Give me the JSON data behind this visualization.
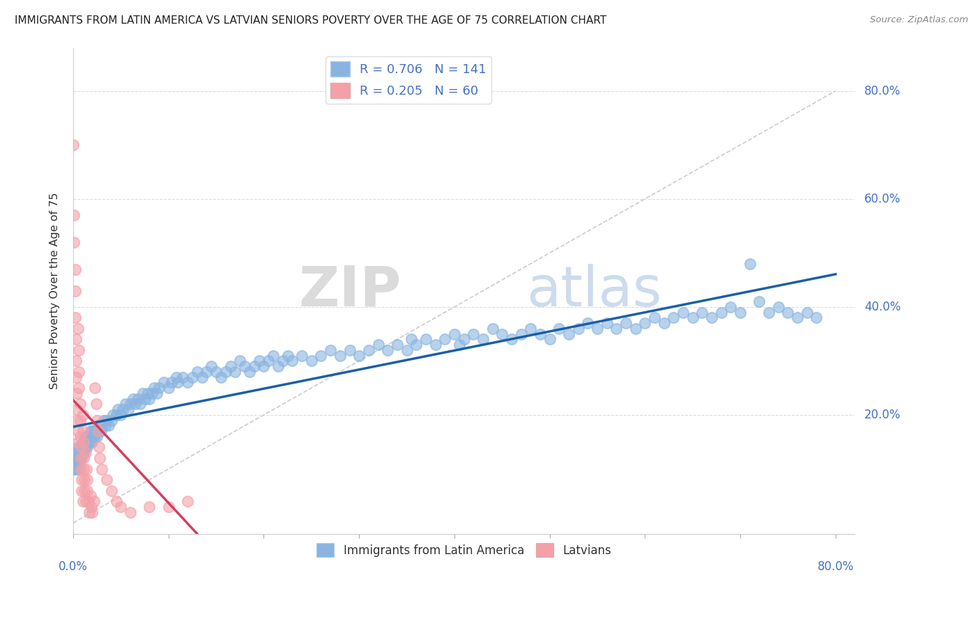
{
  "title": "IMMIGRANTS FROM LATIN AMERICA VS LATVIAN SENIORS POVERTY OVER THE AGE OF 75 CORRELATION CHART",
  "source": "Source: ZipAtlas.com",
  "ylabel": "Seniors Poverty Over the Age of 75",
  "x_lim": [
    0.0,
    0.82
  ],
  "y_lim": [
    -0.02,
    0.88
  ],
  "blue_color": "#8ab4e0",
  "pink_color": "#f4a0a8",
  "blue_line_color": "#1a5fa8",
  "pink_line_color": "#d04060",
  "diag_line_color": "#cccccc",
  "legend_label_blue": "Immigrants from Latin America",
  "legend_label_pink": "Latvians",
  "watermark_zip": "ZIP",
  "watermark_atlas": "atlas",
  "blue_scatter": [
    [
      0.001,
      0.1
    ],
    [
      0.002,
      0.11
    ],
    [
      0.002,
      0.12
    ],
    [
      0.003,
      0.1
    ],
    [
      0.003,
      0.13
    ],
    [
      0.004,
      0.11
    ],
    [
      0.004,
      0.12
    ],
    [
      0.005,
      0.1
    ],
    [
      0.005,
      0.13
    ],
    [
      0.005,
      0.14
    ],
    [
      0.006,
      0.12
    ],
    [
      0.006,
      0.11
    ],
    [
      0.007,
      0.13
    ],
    [
      0.007,
      0.12
    ],
    [
      0.008,
      0.14
    ],
    [
      0.008,
      0.13
    ],
    [
      0.009,
      0.12
    ],
    [
      0.009,
      0.14
    ],
    [
      0.01,
      0.13
    ],
    [
      0.01,
      0.15
    ],
    [
      0.011,
      0.14
    ],
    [
      0.011,
      0.13
    ],
    [
      0.012,
      0.15
    ],
    [
      0.012,
      0.14
    ],
    [
      0.013,
      0.16
    ],
    [
      0.013,
      0.14
    ],
    [
      0.014,
      0.15
    ],
    [
      0.015,
      0.14
    ],
    [
      0.015,
      0.16
    ],
    [
      0.016,
      0.15
    ],
    [
      0.017,
      0.16
    ],
    [
      0.018,
      0.15
    ],
    [
      0.018,
      0.17
    ],
    [
      0.019,
      0.16
    ],
    [
      0.02,
      0.15
    ],
    [
      0.02,
      0.17
    ],
    [
      0.021,
      0.16
    ],
    [
      0.022,
      0.17
    ],
    [
      0.023,
      0.16
    ],
    [
      0.024,
      0.17
    ],
    [
      0.025,
      0.16
    ],
    [
      0.026,
      0.18
    ],
    [
      0.027,
      0.17
    ],
    [
      0.028,
      0.18
    ],
    [
      0.029,
      0.17
    ],
    [
      0.03,
      0.18
    ],
    [
      0.032,
      0.19
    ],
    [
      0.034,
      0.18
    ],
    [
      0.035,
      0.19
    ],
    [
      0.037,
      0.18
    ],
    [
      0.04,
      0.19
    ],
    [
      0.042,
      0.2
    ],
    [
      0.045,
      0.2
    ],
    [
      0.047,
      0.21
    ],
    [
      0.05,
      0.2
    ],
    [
      0.052,
      0.21
    ],
    [
      0.055,
      0.22
    ],
    [
      0.058,
      0.21
    ],
    [
      0.06,
      0.22
    ],
    [
      0.063,
      0.23
    ],
    [
      0.065,
      0.22
    ],
    [
      0.068,
      0.23
    ],
    [
      0.07,
      0.22
    ],
    [
      0.073,
      0.24
    ],
    [
      0.075,
      0.23
    ],
    [
      0.078,
      0.24
    ],
    [
      0.08,
      0.23
    ],
    [
      0.083,
      0.24
    ],
    [
      0.085,
      0.25
    ],
    [
      0.088,
      0.24
    ],
    [
      0.09,
      0.25
    ],
    [
      0.095,
      0.26
    ],
    [
      0.1,
      0.25
    ],
    [
      0.103,
      0.26
    ],
    [
      0.108,
      0.27
    ],
    [
      0.11,
      0.26
    ],
    [
      0.115,
      0.27
    ],
    [
      0.12,
      0.26
    ],
    [
      0.125,
      0.27
    ],
    [
      0.13,
      0.28
    ],
    [
      0.135,
      0.27
    ],
    [
      0.14,
      0.28
    ],
    [
      0.145,
      0.29
    ],
    [
      0.15,
      0.28
    ],
    [
      0.155,
      0.27
    ],
    [
      0.16,
      0.28
    ],
    [
      0.165,
      0.29
    ],
    [
      0.17,
      0.28
    ],
    [
      0.175,
      0.3
    ],
    [
      0.18,
      0.29
    ],
    [
      0.185,
      0.28
    ],
    [
      0.19,
      0.29
    ],
    [
      0.195,
      0.3
    ],
    [
      0.2,
      0.29
    ],
    [
      0.205,
      0.3
    ],
    [
      0.21,
      0.31
    ],
    [
      0.215,
      0.29
    ],
    [
      0.22,
      0.3
    ],
    [
      0.225,
      0.31
    ],
    [
      0.23,
      0.3
    ],
    [
      0.24,
      0.31
    ],
    [
      0.25,
      0.3
    ],
    [
      0.26,
      0.31
    ],
    [
      0.27,
      0.32
    ],
    [
      0.28,
      0.31
    ],
    [
      0.29,
      0.32
    ],
    [
      0.3,
      0.31
    ],
    [
      0.31,
      0.32
    ],
    [
      0.32,
      0.33
    ],
    [
      0.33,
      0.32
    ],
    [
      0.34,
      0.33
    ],
    [
      0.35,
      0.32
    ],
    [
      0.355,
      0.34
    ],
    [
      0.36,
      0.33
    ],
    [
      0.37,
      0.34
    ],
    [
      0.38,
      0.33
    ],
    [
      0.39,
      0.34
    ],
    [
      0.4,
      0.35
    ],
    [
      0.405,
      0.33
    ],
    [
      0.41,
      0.34
    ],
    [
      0.42,
      0.35
    ],
    [
      0.43,
      0.34
    ],
    [
      0.44,
      0.36
    ],
    [
      0.45,
      0.35
    ],
    [
      0.46,
      0.34
    ],
    [
      0.47,
      0.35
    ],
    [
      0.48,
      0.36
    ],
    [
      0.49,
      0.35
    ],
    [
      0.5,
      0.34
    ],
    [
      0.51,
      0.36
    ],
    [
      0.52,
      0.35
    ],
    [
      0.53,
      0.36
    ],
    [
      0.54,
      0.37
    ],
    [
      0.55,
      0.36
    ],
    [
      0.56,
      0.37
    ],
    [
      0.57,
      0.36
    ],
    [
      0.58,
      0.37
    ],
    [
      0.59,
      0.36
    ],
    [
      0.6,
      0.37
    ],
    [
      0.61,
      0.38
    ],
    [
      0.62,
      0.37
    ],
    [
      0.63,
      0.38
    ],
    [
      0.64,
      0.39
    ],
    [
      0.65,
      0.38
    ],
    [
      0.66,
      0.39
    ],
    [
      0.67,
      0.38
    ],
    [
      0.68,
      0.39
    ],
    [
      0.69,
      0.4
    ],
    [
      0.7,
      0.39
    ],
    [
      0.71,
      0.48
    ],
    [
      0.72,
      0.41
    ],
    [
      0.73,
      0.39
    ],
    [
      0.74,
      0.4
    ],
    [
      0.75,
      0.39
    ],
    [
      0.76,
      0.38
    ],
    [
      0.77,
      0.39
    ],
    [
      0.78,
      0.38
    ]
  ],
  "pink_scatter": [
    [
      0.0,
      0.7
    ],
    [
      0.001,
      0.57
    ],
    [
      0.001,
      0.52
    ],
    [
      0.002,
      0.47
    ],
    [
      0.002,
      0.43
    ],
    [
      0.002,
      0.38
    ],
    [
      0.003,
      0.34
    ],
    [
      0.003,
      0.3
    ],
    [
      0.003,
      0.27
    ],
    [
      0.004,
      0.24
    ],
    [
      0.004,
      0.21
    ],
    [
      0.004,
      0.19
    ],
    [
      0.005,
      0.17
    ],
    [
      0.005,
      0.15
    ],
    [
      0.005,
      0.36
    ],
    [
      0.006,
      0.32
    ],
    [
      0.006,
      0.28
    ],
    [
      0.006,
      0.25
    ],
    [
      0.007,
      0.22
    ],
    [
      0.007,
      0.19
    ],
    [
      0.007,
      0.16
    ],
    [
      0.008,
      0.14
    ],
    [
      0.008,
      0.12
    ],
    [
      0.008,
      0.1
    ],
    [
      0.009,
      0.08
    ],
    [
      0.009,
      0.06
    ],
    [
      0.01,
      0.04
    ],
    [
      0.01,
      0.2
    ],
    [
      0.01,
      0.17
    ],
    [
      0.011,
      0.15
    ],
    [
      0.011,
      0.12
    ],
    [
      0.011,
      0.1
    ],
    [
      0.012,
      0.08
    ],
    [
      0.012,
      0.06
    ],
    [
      0.013,
      0.04
    ],
    [
      0.013,
      0.13
    ],
    [
      0.014,
      0.1
    ],
    [
      0.015,
      0.08
    ],
    [
      0.015,
      0.06
    ],
    [
      0.016,
      0.04
    ],
    [
      0.017,
      0.02
    ],
    [
      0.018,
      0.05
    ],
    [
      0.019,
      0.03
    ],
    [
      0.02,
      0.02
    ],
    [
      0.022,
      0.04
    ],
    [
      0.023,
      0.25
    ],
    [
      0.024,
      0.22
    ],
    [
      0.025,
      0.19
    ],
    [
      0.026,
      0.17
    ],
    [
      0.027,
      0.14
    ],
    [
      0.028,
      0.12
    ],
    [
      0.03,
      0.1
    ],
    [
      0.035,
      0.08
    ],
    [
      0.04,
      0.06
    ],
    [
      0.045,
      0.04
    ],
    [
      0.05,
      0.03
    ],
    [
      0.06,
      0.02
    ],
    [
      0.08,
      0.03
    ],
    [
      0.1,
      0.03
    ],
    [
      0.12,
      0.04
    ]
  ]
}
